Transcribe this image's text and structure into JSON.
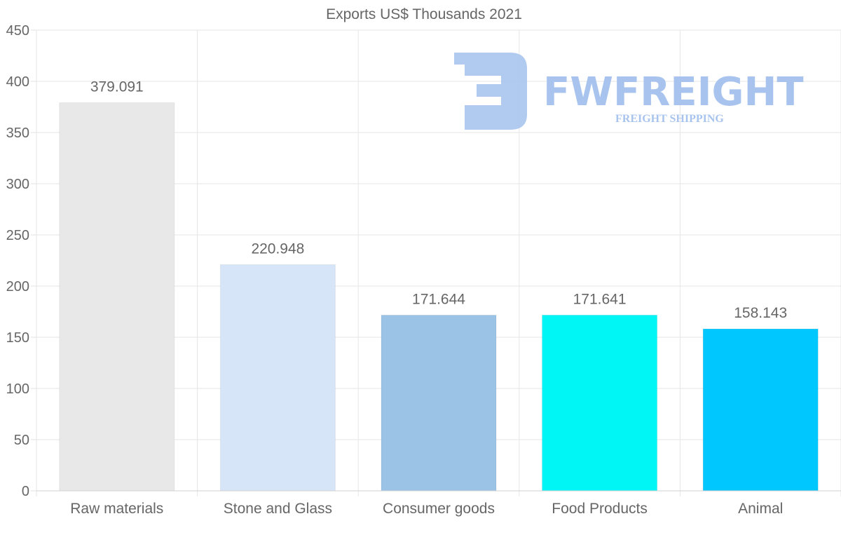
{
  "chart_data": {
    "type": "bar",
    "title": "Exports US$ Thousands 2021",
    "categories": [
      "Raw materials",
      "Stone and Glass",
      "Consumer goods",
      "Food Products",
      "Animal"
    ],
    "values": [
      379.091,
      220.948,
      171.644,
      171.641,
      158.143
    ],
    "value_labels": [
      "379.091",
      "220.948",
      "171.644",
      "171.641",
      "158.143"
    ],
    "colors": [
      "#e8e8e8",
      "#d6e6f8",
      "#9bc3e6",
      "#00f5f5",
      "#00c8ff"
    ],
    "ylim": [
      0,
      450
    ],
    "yticks": [
      0,
      50,
      100,
      150,
      200,
      250,
      300,
      350,
      400,
      450
    ],
    "xlabel": "",
    "ylabel": "",
    "grid": true,
    "legend": "none"
  },
  "watermark": {
    "brand": "FWFREIGHT",
    "tagline": "FREIGHT SHIPPING",
    "color": "#a8c4ee"
  }
}
